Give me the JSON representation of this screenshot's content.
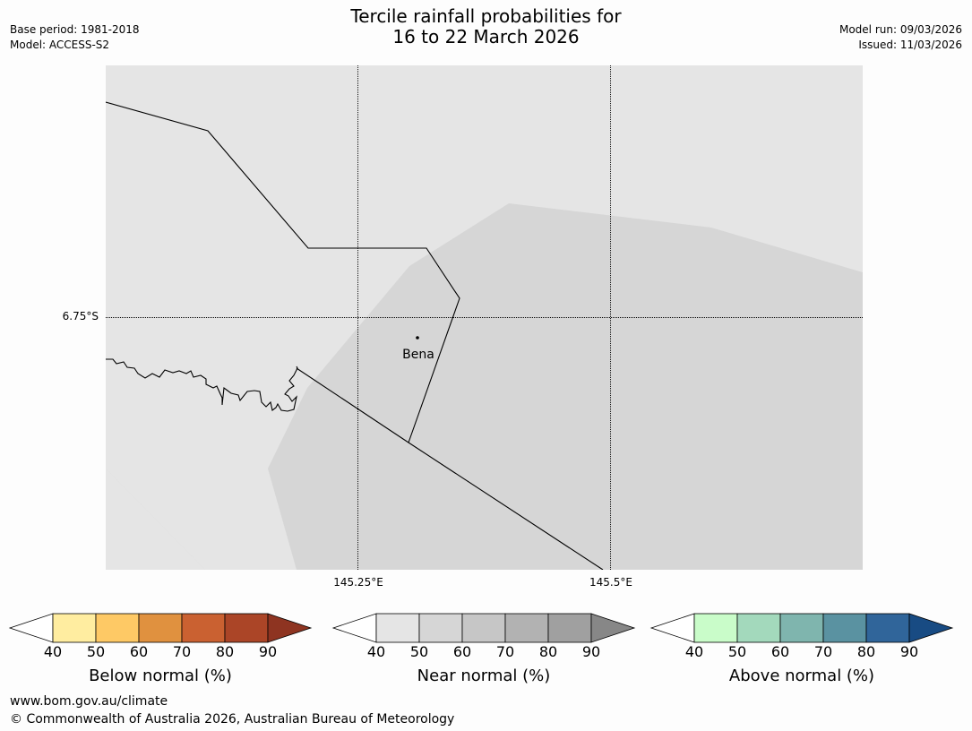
{
  "title": {
    "line1": "Tercile rainfall probabilities for",
    "line2": "16 to 22 March 2026"
  },
  "meta": {
    "base_period": "Base period: 1981-2018",
    "model": "Model: ACCESS-S2",
    "model_run": "Model run: 09/03/2026",
    "issued": "Issued: 11/03/2026"
  },
  "map": {
    "lat_label": "6.75°S",
    "lon_labels": [
      "145.25°E",
      "145.5°E"
    ],
    "place": "Bena",
    "colors": {
      "background": "#e5e5e5",
      "near_normal_40_50": "#d6d6d6",
      "border": "#000000",
      "graticule": "#000000"
    }
  },
  "legends": [
    {
      "caption": "Below normal (%)",
      "ticks": [
        "40",
        "50",
        "60",
        "70",
        "80",
        "90"
      ],
      "colors": [
        "#ffffff",
        "#ffeda0",
        "#fec965",
        "#e0913f",
        "#ca6131",
        "#ab4527",
        "#8e3421"
      ]
    },
    {
      "caption": "Near normal (%)",
      "ticks": [
        "40",
        "50",
        "60",
        "70",
        "80",
        "90"
      ],
      "colors": [
        "#ffffff",
        "#e5e5e5",
        "#d6d6d6",
        "#c6c6c6",
        "#b2b2b2",
        "#a0a0a0",
        "#878787"
      ]
    },
    {
      "caption": "Above normal (%)",
      "ticks": [
        "40",
        "50",
        "60",
        "70",
        "80",
        "90"
      ],
      "colors": [
        "#ffffff",
        "#c9fcc9",
        "#a3d9bc",
        "#7fb5ae",
        "#5a92a1",
        "#30659a",
        "#184b83"
      ]
    }
  ],
  "footer": {
    "url": "www.bom.gov.au/climate",
    "copyright": "© Commonwealth of Australia 2026, Australian Bureau of Meteorology"
  }
}
